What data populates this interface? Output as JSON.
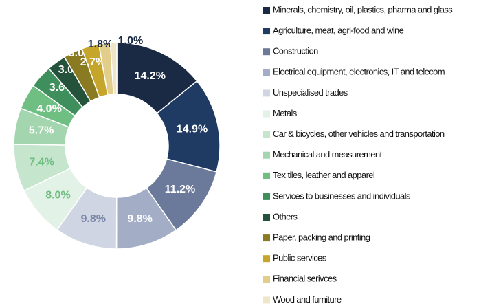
{
  "chart_data": {
    "type": "donut",
    "categories": [
      "Minerals, chemistry, oil, plastics, pharma and glass",
      "Agriculture, meat, agri-food and wine",
      "Construction",
      "Electrical equipment, electronics, IT and telecom",
      "Unspecialised trades",
      "Metals",
      "Car & bicycles, other vehicles and transportation",
      "Mechanical and measurement",
      "Tex tiles, leather and apparel",
      "Services to businesses and individuals",
      "Others",
      "Paper, packing and printing",
      "Public services",
      "Financial serivces",
      "Wood and furniture"
    ],
    "values": [
      14.2,
      14.9,
      11.2,
      9.8,
      9.8,
      8.0,
      7.4,
      5.7,
      4.0,
      3.6,
      3.0,
      3.0,
      2.7,
      1.8,
      1.0
    ],
    "value_labels": [
      "14.2%",
      "14.9%",
      "11.2%",
      "9.8%",
      "9.8%",
      "8.0%",
      "7.4%",
      "5.7%",
      "4.0%",
      "3.6%",
      "3.0%",
      "3.0%",
      "2.7%",
      "1.8%",
      "1.0%"
    ],
    "colors": [
      "#1b2a44",
      "#1f3a63",
      "#6b7a9a",
      "#a3aec6",
      "#d0d5e3",
      "#e3f2e6",
      "#c5e5cc",
      "#a3d6ae",
      "#6fbf83",
      "#3f8f5c",
      "#24523a",
      "#8a7a22",
      "#c6a62a",
      "#e2cd8a",
      "#efe6c8"
    ],
    "label_colors": [
      "#ffffff",
      "#ffffff",
      "#ffffff",
      "#ffffff",
      "#7a86a6",
      "#6fbf83",
      "#6fbf83",
      "#ffffff",
      "#ffffff",
      "#ffffff",
      "#ffffff",
      "#ffffff",
      "#ffffff",
      "#1b2a44",
      "#1b2a44"
    ],
    "legend": "right"
  }
}
